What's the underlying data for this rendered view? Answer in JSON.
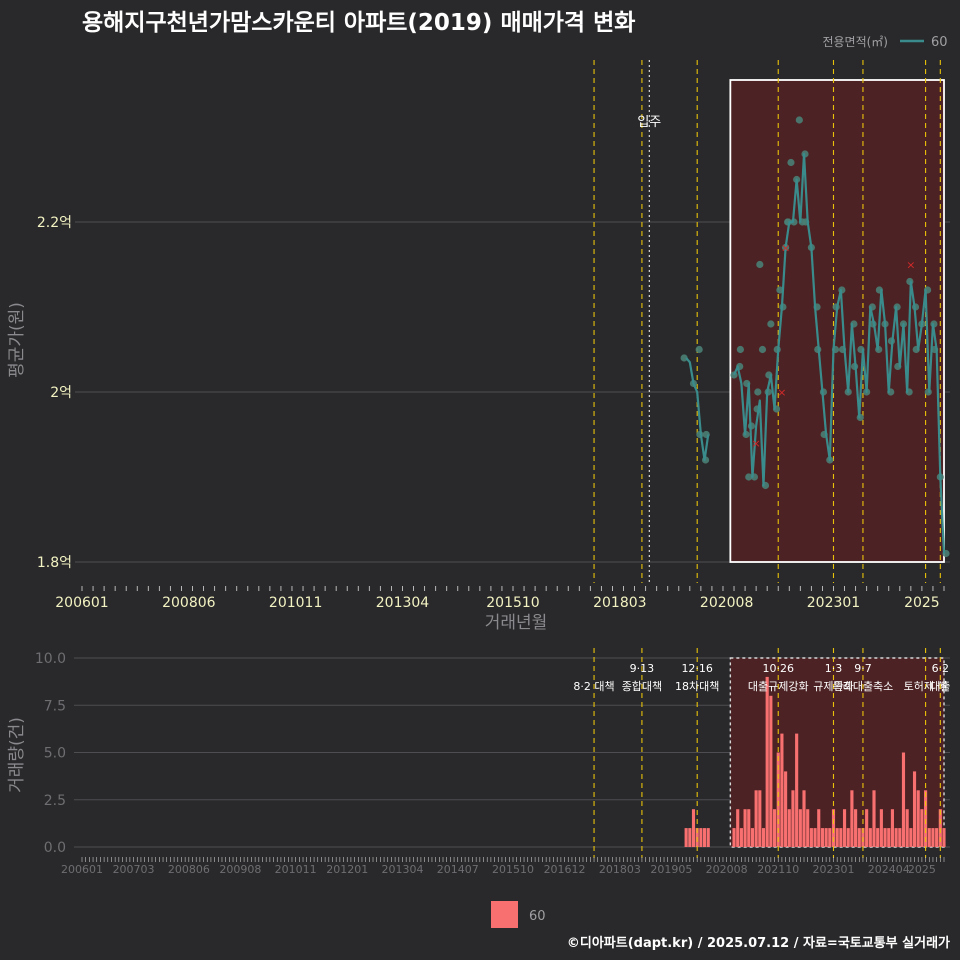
{
  "title": "용해지구천년가맘스카운티 아파트(2019) 매매가격 변화",
  "footer": "©디아파트(dapt.kr) / 2025.07.12 / 자료=국토교통부 실거래가",
  "colors": {
    "background": "#29292b",
    "line": "#3a8c8c",
    "point": "#4a7e74",
    "cancel_mark": "#d42a2a",
    "bar": "#f87070",
    "highlight_fill": "#4d2224",
    "policy_line": "#e8c20a",
    "announce_line": "#e8e8e8",
    "grid": "#4e4e52",
    "text": "#ffffff",
    "tick_top": "#f2f2c2",
    "tick_bottom": "#6e6e72",
    "axis_title": "#8a8a8e"
  },
  "chart_data": [
    {
      "type": "line",
      "panel": "price",
      "xlabel": "거래년월",
      "ylabel": "평균가(원)",
      "ylim": [
        1.78,
        2.4
      ],
      "yticks": [
        1.8,
        2.0,
        2.2
      ],
      "ytick_labels": [
        "1.8억",
        "2억",
        "2.2억"
      ],
      "x_tick_labels": [
        "200601",
        "200806",
        "201011",
        "201304",
        "201510",
        "201803",
        "202008",
        "202301",
        "2025"
      ],
      "legend": {
        "title": "전용면적(㎡)",
        "item": "60",
        "position": "top-right"
      },
      "highlight_range": [
        "2020-09",
        "2025-07"
      ],
      "announce_label": "입주",
      "announce_date": "2018-11",
      "policy_dates": [
        "2017-08",
        "2018-09",
        "2019-12",
        "2021-10",
        "2023-01",
        "2023-09",
        "2025-02",
        "2025-06"
      ],
      "series": [
        {
          "name": "60",
          "x": [
            "2019-09",
            "2019-10",
            "2019-11",
            "2019-12",
            "2020-01",
            "2020-02",
            "2020-03",
            "2020-10",
            "2020-11",
            "2020-12",
            "2021-01",
            "2021-02",
            "2021-03",
            "2021-04",
            "2021-05",
            "2021-06",
            "2021-07",
            "2021-08",
            "2021-09",
            "2021-10",
            "2021-11",
            "2021-12",
            "2022-01",
            "2022-02",
            "2022-03",
            "2022-04",
            "2022-05",
            "2022-06",
            "2022-07",
            "2022-08",
            "2022-09",
            "2022-10",
            "2022-11",
            "2022-12",
            "2023-01",
            "2023-02",
            "2023-03",
            "2023-04",
            "2023-05",
            "2023-06",
            "2023-07",
            "2023-08",
            "2023-09",
            "2023-10",
            "2023-11",
            "2023-12",
            "2024-01",
            "2024-02",
            "2024-03",
            "2024-04",
            "2024-05",
            "2024-06",
            "2024-07",
            "2024-08",
            "2024-09",
            "2024-10",
            "2024-11",
            "2024-12",
            "2025-01",
            "2025-02",
            "2025-03",
            "2025-04",
            "2025-05",
            "2025-06",
            "2025-07"
          ],
          "y": [
            2.04,
            2.035,
            2.01,
            2.0,
            1.95,
            1.92,
            1.95,
            2.02,
            2.03,
            2.01,
            1.95,
            2.01,
            1.9,
            1.96,
            1.99,
            1.89,
            2.0,
            2.02,
            1.98,
            2.05,
            2.1,
            2.17,
            2.2,
            2.2,
            2.25,
            2.2,
            2.28,
            2.2,
            2.17,
            2.1,
            2.05,
            2.0,
            1.95,
            1.92,
            2.05,
            2.1,
            2.12,
            2.05,
            2.0,
            2.08,
            2.03,
            1.97,
            2.05,
            2.0,
            2.1,
            2.08,
            2.05,
            2.12,
            2.08,
            2.0,
            2.06,
            2.1,
            2.03,
            2.08,
            2.0,
            2.13,
            2.1,
            2.05,
            2.08,
            2.12,
            2.0,
            2.08,
            2.05,
            1.9,
            1.81
          ]
        }
      ],
      "scatter": {
        "x": [
          "2019-09",
          "2019-11",
          "2019-12",
          "2020-01",
          "2020-02",
          "2020-03",
          "2020-10",
          "2020-11",
          "2020-12",
          "2021-01",
          "2021-02",
          "2021-02",
          "2021-03",
          "2021-03",
          "2021-04",
          "2021-05",
          "2021-05",
          "2021-06",
          "2021-06",
          "2021-07",
          "2021-08",
          "2021-08",
          "2021-09",
          "2021-10",
          "2021-11",
          "2021-11",
          "2021-12",
          "2021-12",
          "2022-01",
          "2022-02",
          "2022-02",
          "2022-03",
          "2022-04",
          "2022-04",
          "2022-05",
          "2022-06",
          "2022-07",
          "2022-08",
          "2022-09",
          "2022-10",
          "2022-11",
          "2022-12",
          "2023-01",
          "2023-02",
          "2023-03",
          "2023-04",
          "2023-05",
          "2023-06",
          "2023-07",
          "2023-08",
          "2023-09",
          "2023-10",
          "2023-11",
          "2023-12",
          "2024-01",
          "2024-02",
          "2024-03",
          "2024-04",
          "2024-05",
          "2024-06",
          "2024-07",
          "2024-08",
          "2024-09",
          "2024-10",
          "2024-11",
          "2024-12",
          "2025-01",
          "2025-02",
          "2025-03",
          "2025-04",
          "2025-05",
          "2025-06",
          "2025-07"
        ],
        "y": [
          2.04,
          2.01,
          2.05,
          1.95,
          1.92,
          1.95,
          2.02,
          2.03,
          2.05,
          1.95,
          2.01,
          1.9,
          1.9,
          1.96,
          1.98,
          2.0,
          2.15,
          1.89,
          2.05,
          2.0,
          2.02,
          2.08,
          1.98,
          2.05,
          2.1,
          2.12,
          2.17,
          2.2,
          2.2,
          2.2,
          2.27,
          2.25,
          2.2,
          2.32,
          2.28,
          2.2,
          2.17,
          2.1,
          2.05,
          2.0,
          1.95,
          1.92,
          2.05,
          2.1,
          2.12,
          2.05,
          2.0,
          2.08,
          2.03,
          1.97,
          2.05,
          2.0,
          2.1,
          2.08,
          2.05,
          2.12,
          2.08,
          2.0,
          2.06,
          2.1,
          2.03,
          2.08,
          2.0,
          2.13,
          2.1,
          2.05,
          2.08,
          2.12,
          2.0,
          2.08,
          2.05,
          1.9,
          1.81
        ]
      },
      "cancelled": {
        "x": [
          "2021-04",
          "2021-11",
          "2021-12",
          "2024-10"
        ],
        "y": [
          1.94,
          2.0,
          2.17,
          2.15
        ]
      }
    },
    {
      "type": "bar",
      "panel": "volume",
      "ylabel": "거래량(건)",
      "ylim": [
        0,
        10
      ],
      "yticks": [
        0,
        2.5,
        5,
        7.5,
        10
      ],
      "ytick_labels": [
        "0.0",
        "2.5",
        "5.0",
        "7.5",
        "10.0"
      ],
      "x_tick_labels": [
        "200601",
        "200703",
        "200806",
        "200908",
        "201011",
        "201201",
        "201304",
        "201407",
        "201510",
        "201612",
        "201803",
        "201905",
        "202008",
        "202110",
        "202301",
        "202404",
        "2025"
      ],
      "legend": {
        "item": "60",
        "position": "bottom"
      },
      "highlight_range": [
        "2020-09",
        "2025-07"
      ],
      "policy_markers": [
        {
          "date": "2017-08",
          "date_label": "",
          "label": "8·2 대책"
        },
        {
          "date": "2018-09",
          "date_label": "9·13",
          "label": "종합대책"
        },
        {
          "date": "2019-12",
          "date_label": "12·16",
          "label": "18차대책"
        },
        {
          "date": "2021-10",
          "date_label": "10·26",
          "label": "대출규제강화"
        },
        {
          "date": "2023-01",
          "date_label": "1·3",
          "label": "규제완화"
        },
        {
          "date": "2023-09",
          "date_label": "9·7",
          "label": "특례대출축소"
        },
        {
          "date": "2025-02",
          "date_label": "",
          "label": "토허제 해"
        },
        {
          "date": "2025-06",
          "date_label": "6·2",
          "label": "대출"
        }
      ],
      "x": [
        "2019-09",
        "2019-10",
        "2019-11",
        "2019-12",
        "2020-01",
        "2020-02",
        "2020-03",
        "2020-10",
        "2020-11",
        "2020-12",
        "2021-01",
        "2021-02",
        "2021-03",
        "2021-04",
        "2021-05",
        "2021-06",
        "2021-07",
        "2021-08",
        "2021-09",
        "2021-10",
        "2021-11",
        "2021-12",
        "2022-01",
        "2022-02",
        "2022-03",
        "2022-04",
        "2022-05",
        "2022-06",
        "2022-07",
        "2022-08",
        "2022-09",
        "2022-10",
        "2022-11",
        "2022-12",
        "2023-01",
        "2023-02",
        "2023-03",
        "2023-04",
        "2023-05",
        "2023-06",
        "2023-07",
        "2023-08",
        "2023-09",
        "2023-10",
        "2023-11",
        "2023-12",
        "2024-01",
        "2024-02",
        "2024-03",
        "2024-04",
        "2024-05",
        "2024-06",
        "2024-07",
        "2024-08",
        "2024-09",
        "2024-10",
        "2024-11",
        "2024-12",
        "2025-01",
        "2025-02",
        "2025-03",
        "2025-04",
        "2025-05",
        "2025-06",
        "2025-07"
      ],
      "values": [
        1,
        1,
        2,
        1,
        1,
        1,
        1,
        1,
        2,
        1,
        2,
        2,
        1,
        3,
        3,
        1,
        9,
        8,
        2,
        5,
        6,
        4,
        2,
        3,
        6,
        2,
        3,
        2,
        1,
        1,
        2,
        1,
        1,
        1,
        2,
        1,
        1,
        2,
        1,
        3,
        2,
        1,
        1,
        2,
        1,
        3,
        1,
        2,
        1,
        1,
        2,
        1,
        1,
        5,
        2,
        1,
        4,
        3,
        2,
        3,
        1,
        1,
        1,
        2,
        1
      ]
    }
  ]
}
